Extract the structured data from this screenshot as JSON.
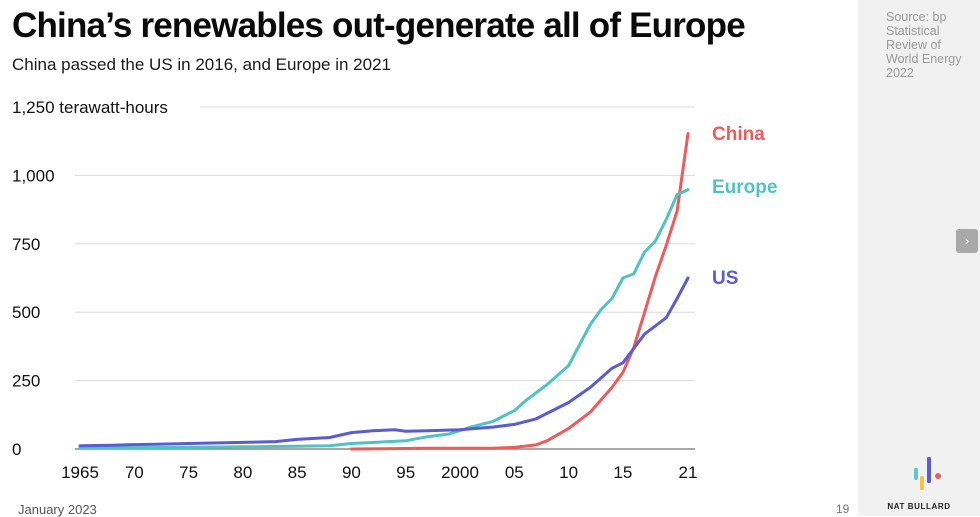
{
  "header": {
    "title": "China’s renewables out-generate all of Europe",
    "subtitle": "China passed the US in 2016, and Europe in 2021"
  },
  "side_panel": {
    "source": "Source: bp Statistical Review of World Energy 2022",
    "next_icon": "chevron-right-icon",
    "next_glyph": "›",
    "brand": "NAT BULLARD",
    "logo_colors": [
      "#5ec9c9",
      "#f4c542",
      "#5b5bd6",
      "#f05a5a"
    ]
  },
  "footer": {
    "date": "January 2023",
    "page": "19"
  },
  "chart_data": {
    "type": "line",
    "title": "China’s renewables out-generate all of Europe",
    "subtitle": "China passed the US in 2016, and Europe in 2021",
    "ylabel": "terawatt-hours",
    "y_unit_label": "1,250 terawatt-hours",
    "ylim": [
      0,
      1250
    ],
    "xlim": [
      1965,
      2021
    ],
    "y_ticks": [
      0,
      250,
      500,
      750,
      1000,
      1250
    ],
    "y_tick_labels": [
      "0",
      "250",
      "500",
      "750",
      "1,000",
      "1,250"
    ],
    "x_ticks": [
      1965,
      1970,
      1975,
      1980,
      1985,
      1990,
      1995,
      2000,
      2005,
      2010,
      2015,
      2021
    ],
    "x_tick_labels": [
      "1965",
      "70",
      "75",
      "80",
      "85",
      "90",
      "95",
      "2000",
      "05",
      "10",
      "15",
      "21"
    ],
    "grid": "horizontal",
    "legend": "inline labels at line ends",
    "series": [
      {
        "name": "China",
        "color": "#f05a5a",
        "x": [
          1990,
          1995,
          1997,
          2000,
          2003,
          2005,
          2007,
          2008,
          2010,
          2012,
          2014,
          2015,
          2016,
          2017,
          2018,
          2019,
          2020,
          2021
        ],
        "values": [
          0,
          2,
          3,
          3,
          3,
          6,
          15,
          30,
          75,
          135,
          225,
          280,
          370,
          500,
          630,
          745,
          870,
          1153
        ]
      },
      {
        "name": "Europe",
        "color": "#4fc3c3",
        "x": [
          1965,
          1970,
          1975,
          1980,
          1985,
          1988,
          1990,
          1995,
          1997,
          1999,
          2001,
          2003,
          2005,
          2006,
          2008,
          2010,
          2011,
          2012,
          2013,
          2014,
          2015,
          2016,
          2017,
          2018,
          2019,
          2020,
          2021
        ],
        "values": [
          5,
          5,
          6,
          8,
          10,
          12,
          20,
          30,
          45,
          55,
          80,
          100,
          140,
          175,
          235,
          305,
          380,
          455,
          510,
          550,
          625,
          640,
          720,
          760,
          840,
          930,
          948
        ]
      },
      {
        "name": "US",
        "color": "#5b5bd6",
        "x": [
          1965,
          1968,
          1970,
          1972,
          1975,
          1980,
          1983,
          1985,
          1988,
          1990,
          1992,
          1994,
          1995,
          1997,
          2000,
          2003,
          2005,
          2007,
          2009,
          2010,
          2012,
          2014,
          2015,
          2017,
          2019,
          2020,
          2021
        ],
        "values": [
          12,
          14,
          16,
          17,
          20,
          24,
          27,
          35,
          42,
          60,
          67,
          70,
          65,
          67,
          70,
          80,
          90,
          110,
          150,
          170,
          225,
          295,
          315,
          420,
          480,
          550,
          625
        ]
      }
    ]
  }
}
